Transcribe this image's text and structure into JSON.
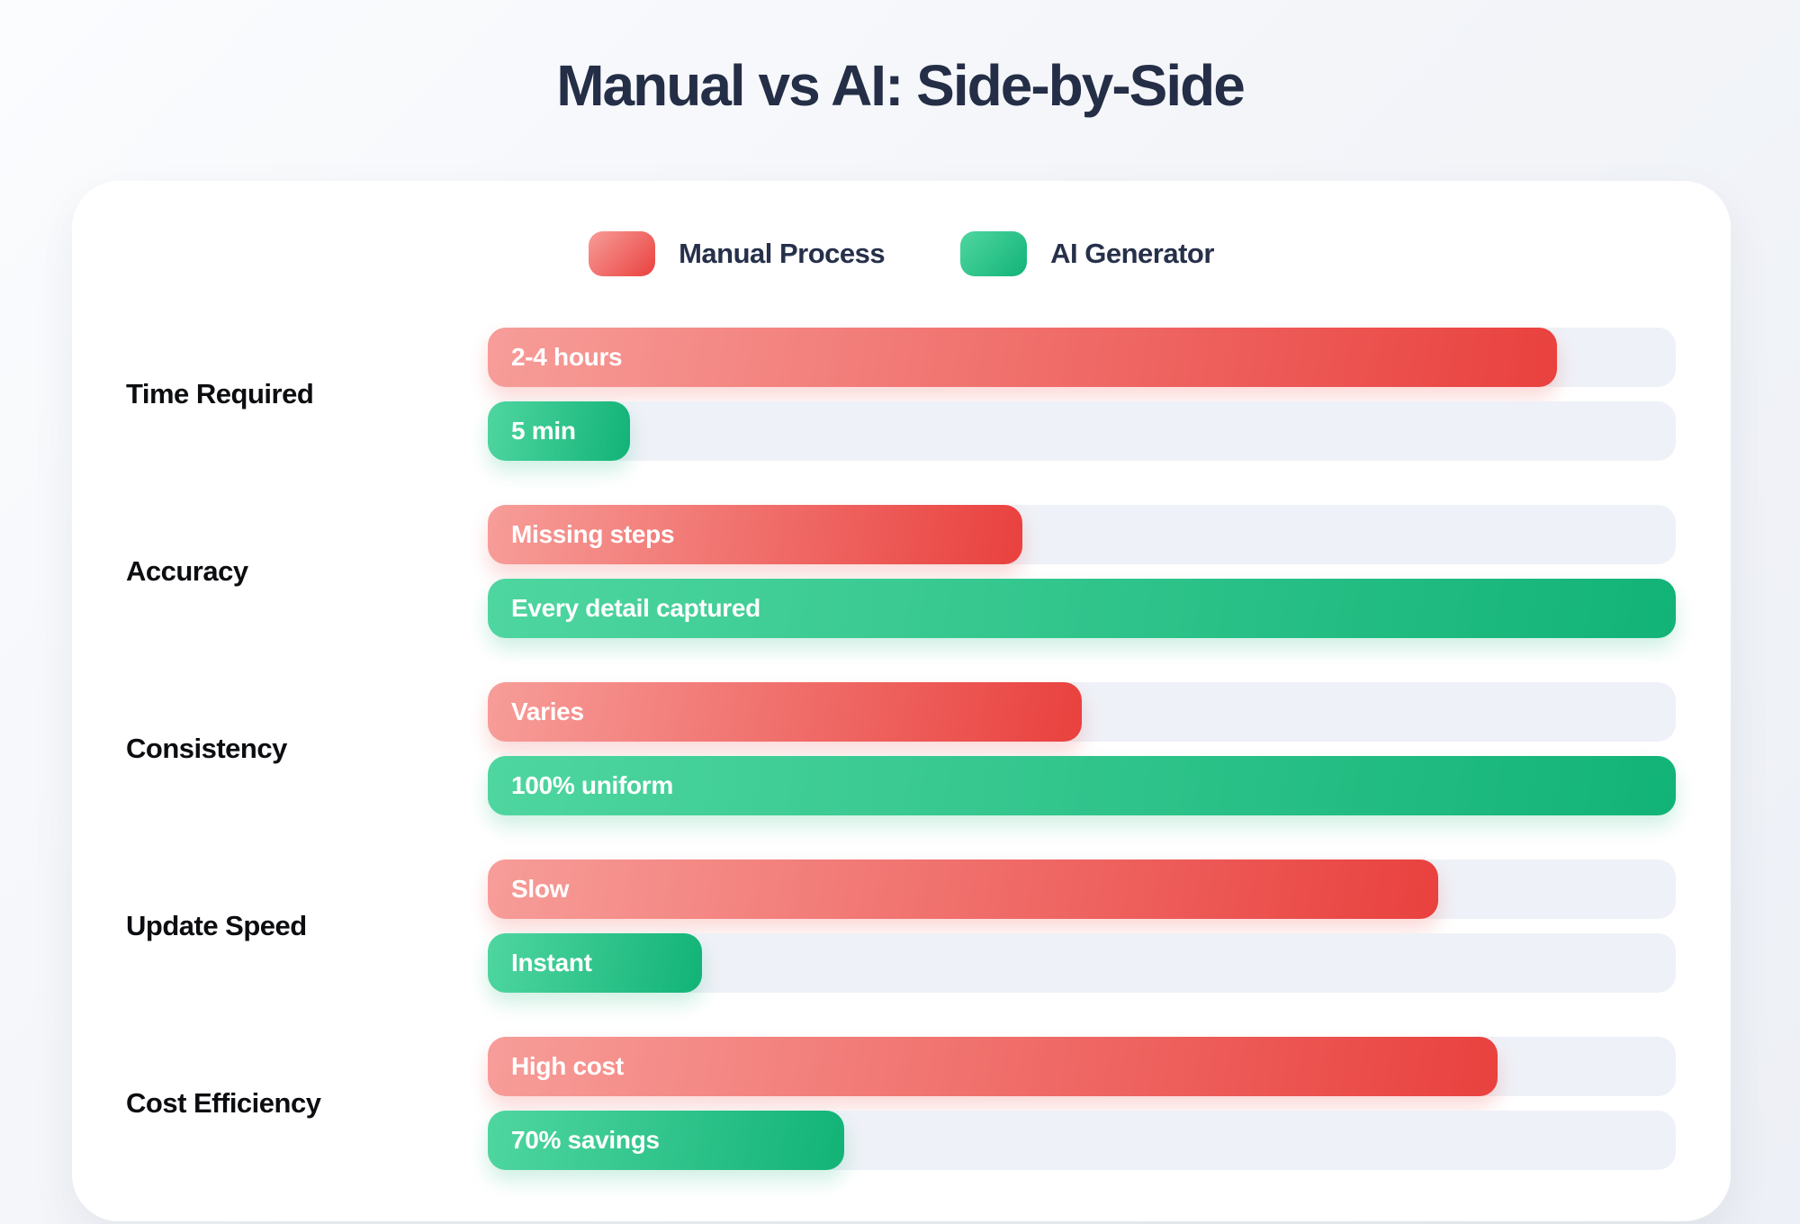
{
  "page": {
    "title": "Manual vs AI: Side-by-Side"
  },
  "legend": {
    "manual_label": "Manual Process",
    "ai_label": "AI Generator"
  },
  "colors": {
    "title": "#242e46",
    "track": "#eef1f7",
    "red-start": "#f79d99",
    "red-end": "#e9413e",
    "green-start": "#4fd6a0",
    "green-end": "#12b377"
  },
  "chart_data": {
    "type": "bar",
    "orientation": "horizontal",
    "title": "Manual vs AI: Side-by-Side",
    "categories": [
      "Time Required",
      "Accuracy",
      "Consistency",
      "Update Speed",
      "Cost Efficiency"
    ],
    "series": [
      {
        "name": "Manual Process",
        "color": "#e9413e",
        "values_pct": [
          90,
          45,
          50,
          80,
          85
        ],
        "labels": [
          "2-4 hours",
          "Missing steps",
          "Varies",
          "Slow",
          "High cost"
        ]
      },
      {
        "name": "AI Generator",
        "color": "#12b377",
        "values_pct": [
          12,
          100,
          100,
          18,
          30
        ],
        "labels": [
          "5 min",
          "Every detail captured",
          "100% uniform",
          "Instant",
          "70% savings"
        ]
      }
    ],
    "xlim_pct": [
      0,
      100
    ],
    "grid": false,
    "legend_position": "top-center"
  }
}
